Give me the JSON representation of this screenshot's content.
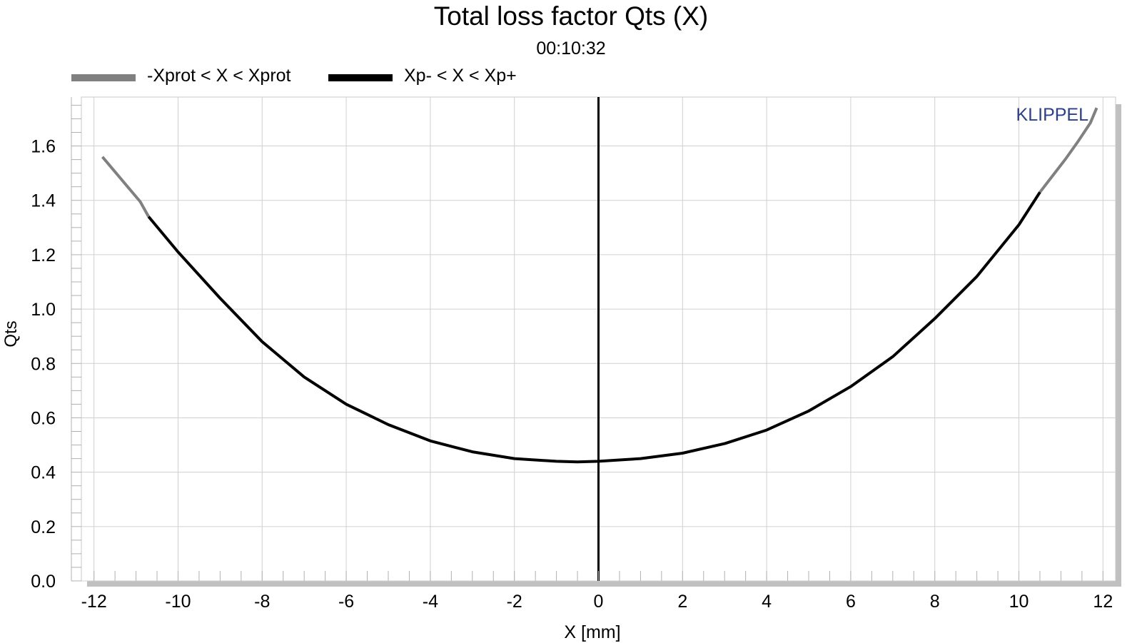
{
  "chart_data": {
    "type": "line",
    "title": "Total loss factor Qts (X)",
    "subtitle": "00:10:32",
    "xlabel": "X [mm]",
    "ylabel": "Qts",
    "xlim": [
      -12.3,
      12.3
    ],
    "ylim": [
      0.0,
      1.78
    ],
    "x_ticks": [
      -12,
      -10,
      -8,
      -6,
      -4,
      -2,
      0,
      2,
      4,
      6,
      8,
      10,
      12
    ],
    "x_tick_labels": [
      "-12",
      "-10",
      "-8",
      "-6",
      "-4",
      "-2",
      "0",
      "2",
      "4",
      "6",
      "8",
      "10",
      "12"
    ],
    "y_ticks": [
      0.0,
      0.2,
      0.4,
      0.6,
      0.8,
      1.0,
      1.2,
      1.4,
      1.6
    ],
    "y_tick_labels": [
      "0.0",
      "0.2",
      "0.4",
      "0.6",
      "0.8",
      "1.0",
      "1.2",
      "1.4",
      "1.6"
    ],
    "grid": true,
    "legend_placement": "top-left",
    "watermark": "KLIPPEL",
    "colors": {
      "prot": "#808080",
      "xp": "#000000",
      "grid": "#d0d0d0",
      "shadow": "#c0c0c0",
      "watermark": "#2a3f8f"
    },
    "series": [
      {
        "name": "-Xprot < X < Xprot",
        "color": "#808080",
        "x": [
          -11.8,
          -11.5,
          -11.2,
          -10.9,
          -10.7,
          10.5,
          10.8,
          11.1,
          11.4,
          11.7,
          11.85
        ],
        "y": [
          1.56,
          1.505,
          1.45,
          1.395,
          1.34,
          1.43,
          1.49,
          1.55,
          1.615,
          1.685,
          1.74
        ]
      },
      {
        "name": "Xp- < X < Xp+",
        "color": "#000000",
        "x": [
          -10.7,
          -10,
          -9,
          -8,
          -7,
          -6,
          -5,
          -4,
          -3,
          -2,
          -1,
          -0.5,
          0,
          1,
          2,
          3,
          4,
          5,
          6,
          7,
          8,
          9,
          10,
          10.5
        ],
        "y": [
          1.34,
          1.21,
          1.04,
          0.88,
          0.75,
          0.65,
          0.575,
          0.515,
          0.475,
          0.45,
          0.44,
          0.438,
          0.44,
          0.45,
          0.47,
          0.505,
          0.555,
          0.625,
          0.715,
          0.825,
          0.965,
          1.12,
          1.31,
          1.43
        ]
      }
    ],
    "zero_line_x": 0
  }
}
